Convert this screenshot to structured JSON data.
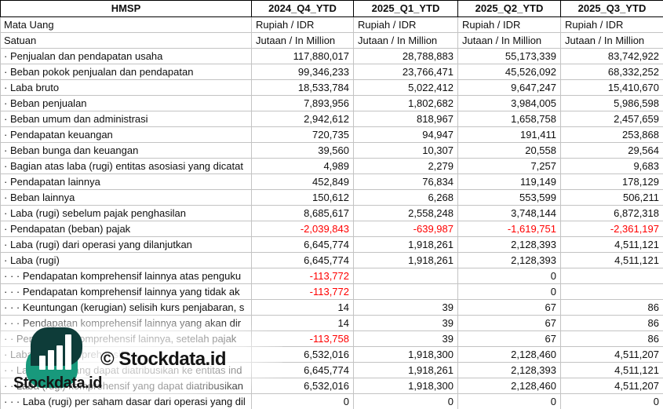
{
  "table": {
    "company": "HMSP",
    "periods": [
      "2024_Q4_YTD",
      "2025_Q1_YTD",
      "2025_Q2_YTD",
      "2025_Q3_YTD"
    ],
    "meta_rows": [
      {
        "label": "Mata Uang",
        "values": [
          "Rupiah / IDR",
          "Rupiah / IDR",
          "Rupiah / IDR",
          "Rupiah / IDR"
        ]
      },
      {
        "label": "Satuan",
        "values": [
          "Jutaan / In Million",
          "Jutaan / In Million",
          "Jutaan / In Million",
          "Jutaan / In Million"
        ]
      }
    ],
    "rows": [
      {
        "label": "· Penjualan dan pendapatan usaha",
        "values": [
          "117,880,017",
          "28,788,883",
          "55,173,339",
          "83,742,922"
        ]
      },
      {
        "label": "· Beban pokok penjualan dan pendapatan",
        "values": [
          "99,346,233",
          "23,766,471",
          "45,526,092",
          "68,332,252"
        ]
      },
      {
        "label": "· Laba bruto",
        "values": [
          "18,533,784",
          "5,022,412",
          "9,647,247",
          "15,410,670"
        ]
      },
      {
        "label": "· Beban penjualan",
        "values": [
          "7,893,956",
          "1,802,682",
          "3,984,005",
          "5,986,598"
        ]
      },
      {
        "label": "· Beban umum dan administrasi",
        "values": [
          "2,942,612",
          "818,967",
          "1,658,758",
          "2,457,659"
        ]
      },
      {
        "label": "· Pendapatan keuangan",
        "values": [
          "720,735",
          "94,947",
          "191,411",
          "253,868"
        ]
      },
      {
        "label": "· Beban bunga dan keuangan",
        "values": [
          "39,560",
          "10,307",
          "20,558",
          "29,564"
        ]
      },
      {
        "label": "· Bagian atas laba (rugi) entitas asosiasi yang dicatat",
        "values": [
          "4,989",
          "2,279",
          "7,257",
          "9,683"
        ]
      },
      {
        "label": "· Pendapatan lainnya",
        "values": [
          "452,849",
          "76,834",
          "119,149",
          "178,129"
        ]
      },
      {
        "label": "· Beban lainnya",
        "values": [
          "150,612",
          "6,268",
          "553,599",
          "506,211"
        ]
      },
      {
        "label": "· Laba (rugi) sebelum pajak penghasilan",
        "values": [
          "8,685,617",
          "2,558,248",
          "3,748,144",
          "6,872,318"
        ]
      },
      {
        "label": "· Pendapatan (beban) pajak",
        "values": [
          "-2,039,843",
          "-639,987",
          "-1,619,751",
          "-2,361,197"
        ]
      },
      {
        "label": "· Laba (rugi) dari operasi yang dilanjutkan",
        "values": [
          "6,645,774",
          "1,918,261",
          "2,128,393",
          "4,511,121"
        ]
      },
      {
        "label": "· Laba (rugi)",
        "values": [
          "6,645,774",
          "1,918,261",
          "2,128,393",
          "4,511,121"
        ]
      },
      {
        "label": "· · · Pendapatan komprehensif lainnya atas penguku",
        "values": [
          "-113,772",
          "",
          "0",
          ""
        ]
      },
      {
        "label": "· · · Pendapatan komprehensif lainnya yang tidak ak",
        "values": [
          "-113,772",
          "",
          "0",
          ""
        ]
      },
      {
        "label": "· · · Keuntungan (kerugian) selisih kurs penjabaran, s",
        "values": [
          "14",
          "39",
          "67",
          "86"
        ]
      },
      {
        "label": "· · · Pendapatan komprehensif lainnya yang akan dir",
        "values": [
          "14",
          "39",
          "67",
          "86"
        ]
      },
      {
        "label": "· · Pendapatan komprehensif lainnya, setelah pajak",
        "values": [
          "-113,758",
          "39",
          "67",
          "86"
        ]
      },
      {
        "label": "· Laba (rugi) komprehensif",
        "values": [
          "6,532,016",
          "1,918,300",
          "2,128,460",
          "4,511,207"
        ]
      },
      {
        "label": "· · Laba (rugi) yang dapat diatribusikan ke entitas ind",
        "values": [
          "6,645,774",
          "1,918,261",
          "2,128,393",
          "4,511,121"
        ]
      },
      {
        "label": "· · Laba (rugi) komprehensif yang dapat diatribusikan",
        "values": [
          "6,532,016",
          "1,918,300",
          "2,128,460",
          "4,511,207"
        ]
      },
      {
        "label": "· · · Laba (rugi) per saham dasar dari operasi yang dil",
        "values": [
          "0",
          "0",
          "0",
          "0"
        ]
      }
    ]
  },
  "watermark": {
    "copyright_text": "© Stockdata.id",
    "brand_text": "Stockdata.id",
    "logo_icon": "bar-chart-leaf-icon"
  },
  "colors": {
    "negative": "#ff0000",
    "grid": "#c3c3c3",
    "header_border": "#000000",
    "logo_dark": "#0e3c39",
    "logo_green": "#18997c",
    "logo_bars": "#ffffff"
  }
}
